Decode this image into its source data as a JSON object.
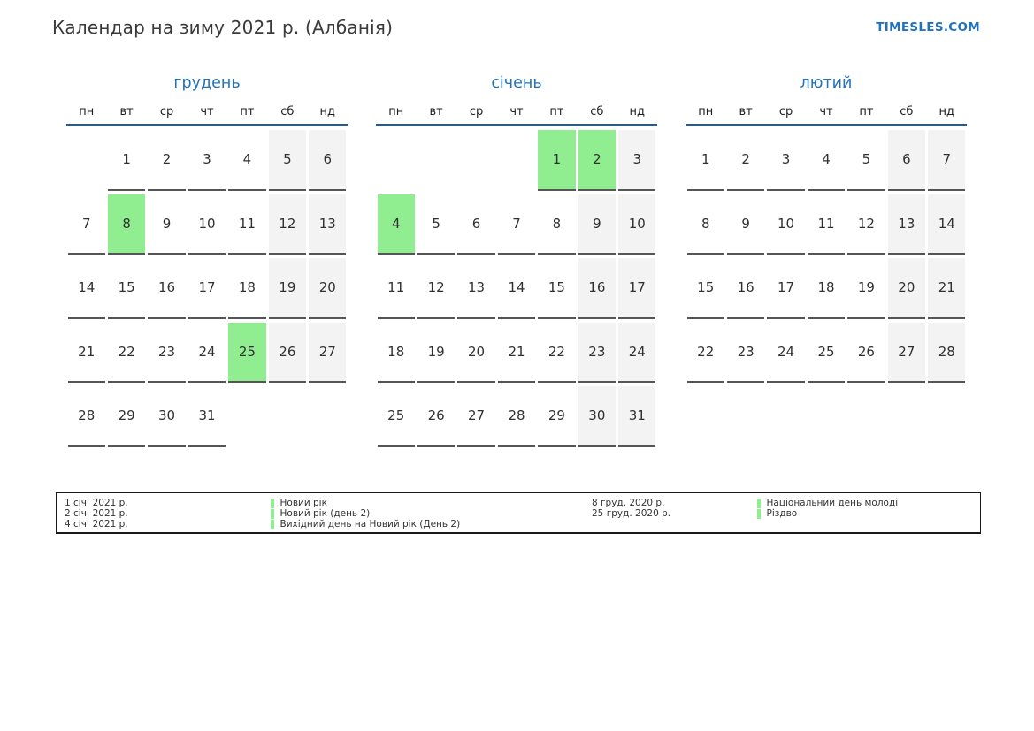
{
  "page": {
    "title": "Календар на зиму 2021 р. (Албанія)",
    "brand": "TIMESLES.COM"
  },
  "colors": {
    "accent_blue": "#2272bd",
    "header_line": "#2d5a80",
    "holiday_green": "#90ee90",
    "weekend_gray": "#f3f3f3",
    "cell_underline": "#555555",
    "text_dark": "#303030"
  },
  "weekdays": [
    "пн",
    "вт",
    "ср",
    "чт",
    "пт",
    "сб",
    "нд"
  ],
  "months": [
    {
      "name": "грудень",
      "weeks": [
        [
          {
            "day": "",
            "type": "empty"
          },
          {
            "day": "1",
            "type": "normal"
          },
          {
            "day": "2",
            "type": "normal"
          },
          {
            "day": "3",
            "type": "normal"
          },
          {
            "day": "4",
            "type": "normal"
          },
          {
            "day": "5",
            "type": "weekend"
          },
          {
            "day": "6",
            "type": "weekend"
          }
        ],
        [
          {
            "day": "7",
            "type": "normal"
          },
          {
            "day": "8",
            "type": "holiday"
          },
          {
            "day": "9",
            "type": "normal"
          },
          {
            "day": "10",
            "type": "normal"
          },
          {
            "day": "11",
            "type": "normal"
          },
          {
            "day": "12",
            "type": "weekend"
          },
          {
            "day": "13",
            "type": "weekend"
          }
        ],
        [
          {
            "day": "14",
            "type": "normal"
          },
          {
            "day": "15",
            "type": "normal"
          },
          {
            "day": "16",
            "type": "normal"
          },
          {
            "day": "17",
            "type": "normal"
          },
          {
            "day": "18",
            "type": "normal"
          },
          {
            "day": "19",
            "type": "weekend"
          },
          {
            "day": "20",
            "type": "weekend"
          }
        ],
        [
          {
            "day": "21",
            "type": "normal"
          },
          {
            "day": "22",
            "type": "normal"
          },
          {
            "day": "23",
            "type": "normal"
          },
          {
            "day": "24",
            "type": "normal"
          },
          {
            "day": "25",
            "type": "holiday"
          },
          {
            "day": "26",
            "type": "weekend"
          },
          {
            "day": "27",
            "type": "weekend"
          }
        ],
        [
          {
            "day": "28",
            "type": "normal"
          },
          {
            "day": "29",
            "type": "normal"
          },
          {
            "day": "30",
            "type": "normal"
          },
          {
            "day": "31",
            "type": "normal"
          },
          {
            "day": "",
            "type": "empty"
          },
          {
            "day": "",
            "type": "empty"
          },
          {
            "day": "",
            "type": "empty"
          }
        ]
      ]
    },
    {
      "name": "січень",
      "weeks": [
        [
          {
            "day": "",
            "type": "empty"
          },
          {
            "day": "",
            "type": "empty"
          },
          {
            "day": "",
            "type": "empty"
          },
          {
            "day": "",
            "type": "empty"
          },
          {
            "day": "1",
            "type": "holiday"
          },
          {
            "day": "2",
            "type": "holiday"
          },
          {
            "day": "3",
            "type": "weekend"
          }
        ],
        [
          {
            "day": "4",
            "type": "holiday"
          },
          {
            "day": "5",
            "type": "normal"
          },
          {
            "day": "6",
            "type": "normal"
          },
          {
            "day": "7",
            "type": "normal"
          },
          {
            "day": "8",
            "type": "normal"
          },
          {
            "day": "9",
            "type": "weekend"
          },
          {
            "day": "10",
            "type": "weekend"
          }
        ],
        [
          {
            "day": "11",
            "type": "normal"
          },
          {
            "day": "12",
            "type": "normal"
          },
          {
            "day": "13",
            "type": "normal"
          },
          {
            "day": "14",
            "type": "normal"
          },
          {
            "day": "15",
            "type": "normal"
          },
          {
            "day": "16",
            "type": "weekend"
          },
          {
            "day": "17",
            "type": "weekend"
          }
        ],
        [
          {
            "day": "18",
            "type": "normal"
          },
          {
            "day": "19",
            "type": "normal"
          },
          {
            "day": "20",
            "type": "normal"
          },
          {
            "day": "21",
            "type": "normal"
          },
          {
            "day": "22",
            "type": "normal"
          },
          {
            "day": "23",
            "type": "weekend"
          },
          {
            "day": "24",
            "type": "weekend"
          }
        ],
        [
          {
            "day": "25",
            "type": "normal"
          },
          {
            "day": "26",
            "type": "normal"
          },
          {
            "day": "27",
            "type": "normal"
          },
          {
            "day": "28",
            "type": "normal"
          },
          {
            "day": "29",
            "type": "normal"
          },
          {
            "day": "30",
            "type": "weekend"
          },
          {
            "day": "31",
            "type": "weekend"
          }
        ]
      ]
    },
    {
      "name": "лютий",
      "weeks": [
        [
          {
            "day": "1",
            "type": "normal"
          },
          {
            "day": "2",
            "type": "normal"
          },
          {
            "day": "3",
            "type": "normal"
          },
          {
            "day": "4",
            "type": "normal"
          },
          {
            "day": "5",
            "type": "normal"
          },
          {
            "day": "6",
            "type": "weekend"
          },
          {
            "day": "7",
            "type": "weekend"
          }
        ],
        [
          {
            "day": "8",
            "type": "normal"
          },
          {
            "day": "9",
            "type": "normal"
          },
          {
            "day": "10",
            "type": "normal"
          },
          {
            "day": "11",
            "type": "normal"
          },
          {
            "day": "12",
            "type": "normal"
          },
          {
            "day": "13",
            "type": "weekend"
          },
          {
            "day": "14",
            "type": "weekend"
          }
        ],
        [
          {
            "day": "15",
            "type": "normal"
          },
          {
            "day": "16",
            "type": "normal"
          },
          {
            "day": "17",
            "type": "normal"
          },
          {
            "day": "18",
            "type": "normal"
          },
          {
            "day": "19",
            "type": "normal"
          },
          {
            "day": "20",
            "type": "weekend"
          },
          {
            "day": "21",
            "type": "weekend"
          }
        ],
        [
          {
            "day": "22",
            "type": "normal"
          },
          {
            "day": "23",
            "type": "normal"
          },
          {
            "day": "24",
            "type": "normal"
          },
          {
            "day": "25",
            "type": "normal"
          },
          {
            "day": "26",
            "type": "normal"
          },
          {
            "day": "27",
            "type": "weekend"
          },
          {
            "day": "28",
            "type": "weekend"
          }
        ]
      ]
    }
  ],
  "legend": {
    "groups": [
      [
        {
          "date": "1 січ. 2021 р.",
          "name": "Новий рік"
        },
        {
          "date": "2 січ. 2021 р.",
          "name": "Новий рік (день 2)"
        },
        {
          "date": "4 січ. 2021 р.",
          "name": "Вихідний день на Новий рік (День 2)"
        }
      ],
      [
        {
          "date": "8 груд. 2020 р.",
          "name": "Національний день молоді"
        },
        {
          "date": "25 груд. 2020 р.",
          "name": "Різдво"
        }
      ]
    ]
  }
}
